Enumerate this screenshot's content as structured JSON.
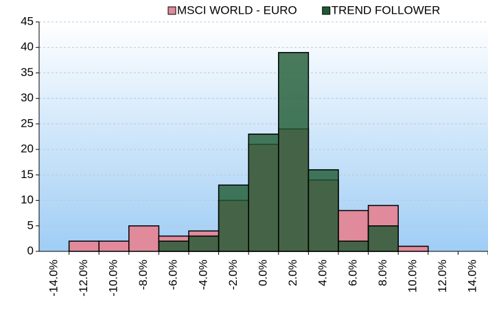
{
  "chart_data": {
    "type": "bar",
    "categories": [
      "-14.0%",
      "-12.0%",
      "-10.0%",
      "-8.0%",
      "-6.0%",
      "-4.0%",
      "-2.0%",
      "0.0%",
      "2.0%",
      "4.0%",
      "6.0%",
      "8.0%",
      "10.0%",
      "12.0%",
      "14.0%"
    ],
    "series": [
      {
        "name": "MSCI WORLD - EURO",
        "color": "#e08a9c",
        "values": [
          0,
          2,
          2,
          5,
          3,
          4,
          10,
          21,
          24,
          14,
          8,
          9,
          1,
          0,
          0
        ]
      },
      {
        "name": "TREND FOLLOWER",
        "color": "#1e5a32",
        "values": [
          0,
          0,
          0,
          0,
          2,
          3,
          13,
          23,
          39,
          16,
          2,
          5,
          0,
          0,
          0
        ]
      }
    ],
    "ylim": [
      0,
      45
    ],
    "yticks": [
      0,
      5,
      10,
      15,
      20,
      25,
      30,
      35,
      40,
      45
    ],
    "grid": true,
    "legend": "top"
  }
}
